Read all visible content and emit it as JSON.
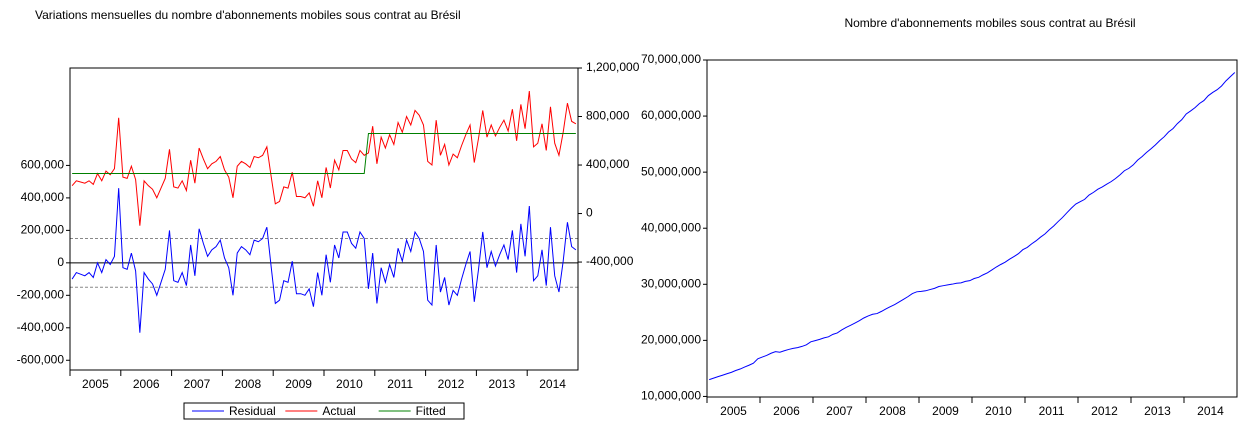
{
  "chart_data": [
    {
      "type": "line",
      "title": "Variations mensuelles du nombre d'abonnements mobiles sous contrat au Brésil",
      "categories": [
        null,
        null,
        null,
        null,
        null,
        null,
        "2005",
        null,
        null,
        null,
        null,
        null,
        null,
        null,
        null,
        null,
        null,
        null,
        "2006",
        null,
        null,
        null,
        null,
        null,
        null,
        null,
        null,
        null,
        null,
        null,
        "2007",
        null,
        null,
        null,
        null,
        null,
        null,
        null,
        null,
        null,
        null,
        null,
        "2008",
        null,
        null,
        null,
        null,
        null,
        null,
        null,
        null,
        null,
        null,
        null,
        "2009",
        null,
        null,
        null,
        null,
        null,
        null,
        null,
        null,
        null,
        null,
        null,
        "2010",
        null,
        null,
        null,
        null,
        null,
        null,
        null,
        null,
        null,
        null,
        null,
        "2011",
        null,
        null,
        null,
        null,
        null,
        null,
        null,
        null,
        null,
        null,
        null,
        "2012",
        null,
        null,
        null,
        null,
        null,
        null,
        null,
        null,
        null,
        null,
        null,
        "2013",
        null,
        null,
        null,
        null,
        null,
        null,
        null,
        null,
        null,
        null,
        null,
        "2014",
        null,
        null,
        null,
        null,
        null
      ],
      "series": [
        {
          "name": "Residual",
          "color": "#0000ff",
          "axis": "y",
          "values": [
            -100000,
            -60000,
            -70000,
            -80000,
            -60000,
            -90000,
            0,
            -60000,
            20000,
            -10000,
            40000,
            460000,
            -30000,
            -40000,
            60000,
            -50000,
            -430000,
            -60000,
            -100000,
            -130000,
            -200000,
            -120000,
            -40000,
            200000,
            -110000,
            -120000,
            -60000,
            -140000,
            110000,
            -80000,
            210000,
            120000,
            40000,
            80000,
            100000,
            140000,
            30000,
            -30000,
            -200000,
            60000,
            100000,
            80000,
            50000,
            140000,
            130000,
            150000,
            220000,
            -20000,
            -250000,
            -230000,
            -110000,
            -120000,
            10000,
            -190000,
            -190000,
            -200000,
            -160000,
            -270000,
            -60000,
            -200000,
            50000,
            -120000,
            110000,
            30000,
            190000,
            190000,
            120000,
            90000,
            190000,
            150000,
            -160000,
            60000,
            -250000,
            -30000,
            -120000,
            -10000,
            -90000,
            90000,
            10000,
            140000,
            70000,
            190000,
            150000,
            70000,
            -230000,
            -260000,
            110000,
            -180000,
            -90000,
            -260000,
            -170000,
            -200000,
            -100000,
            -10000,
            70000,
            -240000,
            -40000,
            190000,
            -30000,
            70000,
            -20000,
            50000,
            110000,
            20000,
            200000,
            -60000,
            240000,
            40000,
            350000,
            -110000,
            -80000,
            80000,
            -140000,
            220000,
            -80000,
            -180000,
            10000,
            250000,
            100000,
            80000
          ]
        },
        {
          "name": "Actual",
          "color": "#ff0000",
          "axis": "y2",
          "values": [
            230000,
            270000,
            260000,
            250000,
            270000,
            240000,
            330000,
            270000,
            350000,
            320000,
            370000,
            790000,
            300000,
            290000,
            390000,
            280000,
            -100000,
            270000,
            230000,
            200000,
            130000,
            210000,
            290000,
            530000,
            220000,
            210000,
            270000,
            190000,
            440000,
            250000,
            540000,
            450000,
            370000,
            410000,
            430000,
            470000,
            360000,
            300000,
            130000,
            390000,
            430000,
            410000,
            380000,
            470000,
            460000,
            480000,
            550000,
            310000,
            80000,
            100000,
            220000,
            210000,
            340000,
            140000,
            140000,
            130000,
            170000,
            60000,
            270000,
            130000,
            380000,
            210000,
            440000,
            360000,
            520000,
            520000,
            450000,
            420000,
            520000,
            480000,
            500000,
            720000,
            410000,
            630000,
            540000,
            650000,
            570000,
            750000,
            670000,
            800000,
            730000,
            850000,
            810000,
            730000,
            430000,
            400000,
            770000,
            480000,
            570000,
            400000,
            490000,
            460000,
            560000,
            650000,
            730000,
            420000,
            620000,
            850000,
            630000,
            730000,
            640000,
            710000,
            770000,
            680000,
            860000,
            600000,
            900000,
            700000,
            1010000,
            550000,
            580000,
            740000,
            520000,
            880000,
            580000,
            480000,
            670000,
            910000,
            760000,
            740000
          ]
        },
        {
          "name": "Fitted",
          "color": "#008000",
          "axis": "y2",
          "values": [
            330000,
            330000,
            330000,
            330000,
            330000,
            330000,
            330000,
            330000,
            330000,
            330000,
            330000,
            330000,
            330000,
            330000,
            330000,
            330000,
            330000,
            330000,
            330000,
            330000,
            330000,
            330000,
            330000,
            330000,
            330000,
            330000,
            330000,
            330000,
            330000,
            330000,
            330000,
            330000,
            330000,
            330000,
            330000,
            330000,
            330000,
            330000,
            330000,
            330000,
            330000,
            330000,
            330000,
            330000,
            330000,
            330000,
            330000,
            330000,
            330000,
            330000,
            330000,
            330000,
            330000,
            330000,
            330000,
            330000,
            330000,
            330000,
            330000,
            330000,
            330000,
            330000,
            330000,
            330000,
            330000,
            330000,
            330000,
            330000,
            330000,
            330000,
            660000,
            660000,
            660000,
            660000,
            660000,
            660000,
            660000,
            660000,
            660000,
            660000,
            660000,
            660000,
            660000,
            660000,
            660000,
            660000,
            660000,
            660000,
            660000,
            660000,
            660000,
            660000,
            660000,
            660000,
            660000,
            660000,
            660000,
            660000,
            660000,
            660000,
            660000,
            660000,
            660000,
            660000,
            660000,
            660000,
            660000,
            660000,
            660000,
            660000,
            660000,
            660000,
            660000,
            660000,
            660000,
            660000,
            660000,
            660000,
            660000,
            660000
          ]
        }
      ],
      "ylim": [
        -660000,
        1200000
      ],
      "yticks": [
        {
          "value": -600000,
          "label": "-600,000"
        },
        {
          "value": -400000,
          "label": "-400,000"
        },
        {
          "value": -200000,
          "label": "-200,000"
        },
        0,
        {
          "value": 200000,
          "label": "200,000"
        },
        {
          "value": 400000,
          "label": "400,000"
        },
        {
          "value": 600000,
          "label": "600,000"
        }
      ],
      "y2lim": [
        -1290000,
        1200000
      ],
      "y2ticks": [
        {
          "value": -400000,
          "label": "-400,000"
        },
        0,
        {
          "value": 400000,
          "label": "400,000"
        },
        {
          "value": 800000,
          "label": "800,000"
        },
        {
          "value": 1200000,
          "label": "1,200,000"
        }
      ],
      "reference_lines": [
        {
          "value": 150000,
          "style": "dashed"
        },
        {
          "value": 0,
          "style": "solid"
        },
        {
          "value": -150000,
          "style": "dashed"
        }
      ],
      "legend": "bottom"
    },
    {
      "type": "line",
      "title": "Nombre d'abonnements mobiles sous contrat au Brésil",
      "categories": [
        null,
        null,
        null,
        null,
        null,
        null,
        "2005",
        null,
        null,
        null,
        null,
        null,
        null,
        null,
        null,
        null,
        null,
        null,
        "2006",
        null,
        null,
        null,
        null,
        null,
        null,
        null,
        null,
        null,
        null,
        null,
        "2007",
        null,
        null,
        null,
        null,
        null,
        null,
        null,
        null,
        null,
        null,
        null,
        "2008",
        null,
        null,
        null,
        null,
        null,
        null,
        null,
        null,
        null,
        null,
        null,
        "2009",
        null,
        null,
        null,
        null,
        null,
        null,
        null,
        null,
        null,
        null,
        null,
        "2010",
        null,
        null,
        null,
        null,
        null,
        null,
        null,
        null,
        null,
        null,
        null,
        "2011",
        null,
        null,
        null,
        null,
        null,
        null,
        null,
        null,
        null,
        null,
        null,
        "2012",
        null,
        null,
        null,
        null,
        null,
        null,
        null,
        null,
        null,
        null,
        null,
        "2013",
        null,
        null,
        null,
        null,
        null,
        null,
        null,
        null,
        null,
        null,
        null,
        "2014",
        null,
        null,
        null,
        null,
        null
      ],
      "series": [
        {
          "color": "#0000ff",
          "axis": "y",
          "values": [
            13000000,
            13270000,
            13530000,
            13780000,
            14050000,
            14290000,
            14620000,
            14890000,
            15240000,
            15560000,
            15930000,
            16720000,
            17020000,
            17310000,
            17700000,
            17980000,
            17880000,
            18150000,
            18380000,
            18580000,
            18710000,
            18920000,
            19210000,
            19740000,
            19960000,
            20170000,
            20440000,
            20630000,
            21070000,
            21320000,
            21860000,
            22310000,
            22680000,
            23090000,
            23520000,
            23990000,
            24350000,
            24650000,
            24780000,
            25170000,
            25600000,
            26010000,
            26390000,
            26860000,
            27320000,
            27800000,
            28350000,
            28660000,
            28740000,
            28840000,
            29060000,
            29270000,
            29610000,
            29750000,
            29890000,
            30020000,
            30190000,
            30250000,
            30520000,
            30650000,
            31030000,
            31240000,
            31680000,
            32040000,
            32560000,
            33080000,
            33530000,
            33950000,
            34470000,
            34950000,
            35450000,
            36170000,
            36580000,
            37210000,
            37750000,
            38400000,
            38970000,
            39720000,
            40390000,
            41190000,
            41920000,
            42770000,
            43580000,
            44310000,
            44740000,
            45140000,
            45910000,
            46390000,
            46960000,
            47360000,
            47850000,
            48310000,
            48870000,
            49520000,
            50250000,
            50670000,
            51290000,
            52140000,
            52770000,
            53500000,
            54140000,
            54850000,
            55620000,
            56300000,
            57160000,
            57760000,
            58660000,
            59360000,
            60370000,
            60920000,
            61500000,
            62240000,
            62760000,
            63640000,
            64220000,
            64700000,
            65370000,
            66280000,
            67040000,
            67780000
          ]
        }
      ],
      "ylim": [
        9900000,
        70000000
      ],
      "yticks": [
        {
          "value": 10000000,
          "label": "10,000,000"
        },
        {
          "value": 20000000,
          "label": "20,000,000"
        },
        {
          "value": 30000000,
          "label": "30,000,000"
        },
        {
          "value": 40000000,
          "label": "40,000,000"
        },
        {
          "value": 50000000,
          "label": "50,000,000"
        },
        {
          "value": 60000000,
          "label": "60,000,000"
        },
        {
          "value": 70000000,
          "label": "70,000,000"
        }
      ]
    }
  ]
}
